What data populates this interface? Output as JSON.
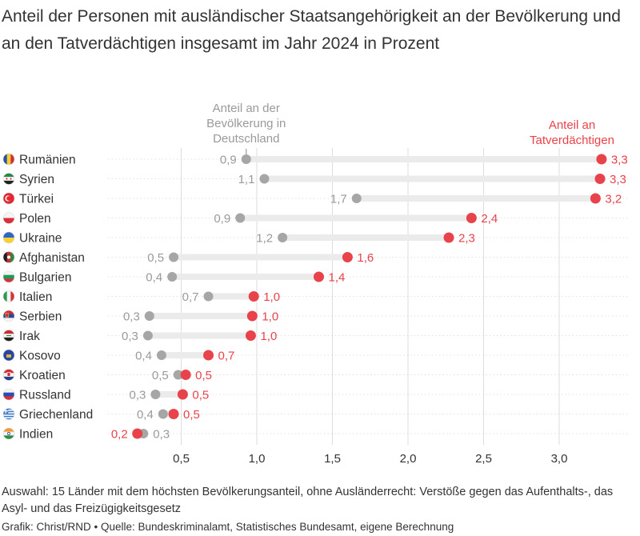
{
  "title": "Anteil der Personen mit ausländischer Staatsangehörigkeit an der Bevölkerung und an den Tatverdächtigen insgesamt im Jahr 2024 in Prozent",
  "footnote": "Auswahl: 15 Länder mit dem höchsten Bevölkerungsanteil, ohne Ausländerrecht: Verstöße gegen das Aufenthalts-, das Asyl- und das Freizügigkeitsgesetz",
  "credit": "Grafik: Christ/RND • Quelle: Bundeskriminalamt, Statistisches Bundesamt, eigene Berechnung",
  "colors": {
    "population": "#a6a6a6",
    "suspects": "#e8434b",
    "connector": "#ebebeb",
    "grid": "#dddddd",
    "text": "#333333"
  },
  "chart_data": {
    "type": "dumbbell",
    "xlim": [
      0.1,
      3.4
    ],
    "x_ticks": [
      {
        "value": 0.5,
        "label": "0,5"
      },
      {
        "value": 1.0,
        "label": "1,0"
      },
      {
        "value": 1.5,
        "label": "1,5"
      },
      {
        "value": 2.0,
        "label": "2,0"
      },
      {
        "value": 2.5,
        "label": "2,5"
      },
      {
        "value": 3.0,
        "label": "3,0"
      }
    ],
    "grid": "vertical",
    "series": [
      {
        "name": "Anteil an der Bevölkerung in Deutschland",
        "key": "population"
      },
      {
        "name": "Anteil an Tatverdächtigen",
        "key": "suspects"
      }
    ],
    "annotations": {
      "population": [
        "Anteil an der",
        "Bevölkerung in",
        "Deutschland"
      ],
      "suspects": [
        "Anteil an",
        "Tatverdächtigen"
      ]
    },
    "rows": [
      {
        "country": "Rumänien",
        "flag": "romania-flag-icon",
        "population": 0.93,
        "population_label": "0,9",
        "suspects": 3.28,
        "suspects_label": "3,3"
      },
      {
        "country": "Syrien",
        "flag": "syria-flag-icon",
        "population": 1.05,
        "population_label": "1,1",
        "suspects": 3.27,
        "suspects_label": "3,3"
      },
      {
        "country": "Türkei",
        "flag": "turkey-flag-icon",
        "population": 1.66,
        "population_label": "1,7",
        "suspects": 3.24,
        "suspects_label": "3,2"
      },
      {
        "country": "Polen",
        "flag": "poland-flag-icon",
        "population": 0.89,
        "population_label": "0,9",
        "suspects": 2.42,
        "suspects_label": "2,4"
      },
      {
        "country": "Ukraine",
        "flag": "ukraine-flag-icon",
        "population": 1.17,
        "population_label": "1,2",
        "suspects": 2.27,
        "suspects_label": "2,3"
      },
      {
        "country": "Afghanistan",
        "flag": "afghanistan-flag-icon",
        "population": 0.45,
        "population_label": "0,5",
        "suspects": 1.6,
        "suspects_label": "1,6"
      },
      {
        "country": "Bulgarien",
        "flag": "bulgaria-flag-icon",
        "population": 0.44,
        "population_label": "0,4",
        "suspects": 1.41,
        "suspects_label": "1,4"
      },
      {
        "country": "Italien",
        "flag": "italy-flag-icon",
        "population": 0.68,
        "population_label": "0,7",
        "suspects": 0.98,
        "suspects_label": "1,0"
      },
      {
        "country": "Serbien",
        "flag": "serbia-flag-icon",
        "population": 0.29,
        "population_label": "0,3",
        "suspects": 0.97,
        "suspects_label": "1,0"
      },
      {
        "country": "Irak",
        "flag": "iraq-flag-icon",
        "population": 0.28,
        "population_label": "0,3",
        "suspects": 0.96,
        "suspects_label": "1,0"
      },
      {
        "country": "Kosovo",
        "flag": "kosovo-flag-icon",
        "population": 0.37,
        "population_label": "0,4",
        "suspects": 0.68,
        "suspects_label": "0,7"
      },
      {
        "country": "Kroatien",
        "flag": "croatia-flag-icon",
        "population": 0.48,
        "population_label": "0,5",
        "suspects": 0.53,
        "suspects_label": "0,5"
      },
      {
        "country": "Russland",
        "flag": "russia-flag-icon",
        "population": 0.33,
        "population_label": "0,3",
        "suspects": 0.51,
        "suspects_label": "0,5"
      },
      {
        "country": "Griechenland",
        "flag": "greece-flag-icon",
        "population": 0.38,
        "population_label": "0,4",
        "suspects": 0.45,
        "suspects_label": "0,5"
      },
      {
        "country": "Indien",
        "flag": "india-flag-icon",
        "population": 0.25,
        "population_label": "0,3",
        "suspects": 0.21,
        "suspects_label": "0,2"
      }
    ]
  }
}
